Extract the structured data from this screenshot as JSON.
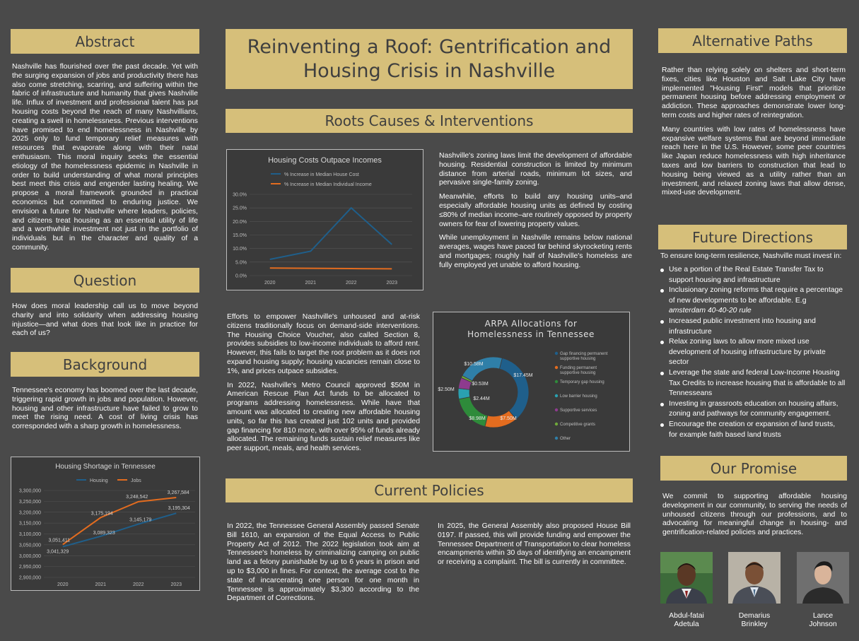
{
  "title": "Reinventing a Roof: Gentrification and Housing Crisis in Nashville",
  "sections": {
    "abstract": {
      "heading": "Abstract",
      "text": "Nashville has flourished over the past decade. Yet with the surging expansion of jobs and productivity there has also come stretching, scarring, and suffering within the fabric of infrastructure and humanity that gives Nashville life. Influx of investment and professional talent has put housing costs beyond the reach of many Nashvillians, creating a swell in homelessness. Previous interventions have promised to end homelessness in Nashville by 2025 only to fund temporary relief measures with resources that evaporate along with their natal enthusiasm. This moral inquiry seeks the essential etiology of the homelessness epidemic in Nashville in order to build understanding of what moral principles best meet this crisis and engender lasting healing. We propose a moral framework grounded in practical economics but committed to enduring justice. We envision a future for Nashville where leaders, policies, and citizens treat housing as an essential utility of life and a worthwhile investment not just in the portfolio of individuals but in the character and quality of a community."
    },
    "question": {
      "heading": "Question",
      "text": "How does moral leadership call us to move beyond charity and into solidarity when addressing housing injustice—and what does that look like in practice for each of us?"
    },
    "background": {
      "heading": "Background",
      "text": "Tennessee's economy has boomed over the last decade, triggering rapid growth in jobs and population. However, housing and other infrastructure have failed to grow to meet the rising need. A cost of living crisis has corresponded with  a sharp growth in homelessness."
    },
    "roots": {
      "heading": "Roots Causes & Interventions",
      "right_paragraphs": [
        "Nashville's zoning laws limit the development of affordable housing. Residential construction is limited by minimum distance from arterial roads, minimum lot sizes, and pervasive single-family zoning.",
        "Meanwhile, efforts to build any housing units–and especially affordable housing units as defined by costing ≤80% of median income–are routinely opposed by property owners for fear of lowering property values.",
        "While unemployment in Nashville remains below national averages, wages have paced far behind skyrocketing rents and mortgages; roughly half of Nashville's homeless are fully employed yet unable to afford housing."
      ],
      "left_paragraphs": [
        "Efforts to empower Nashville's unhoused and at-risk citizens traditionally focus on demand-side interventions. The Housing Choice Voucher, also called Section 8, provides subsidies to low-income individuals to afford rent. However, this fails to target the root problem as it does not expand housing supply; housing vacancies remain close to 1%, and prices outpace subsidies.",
        "In 2022, Nashville's Metro Council approved $50M in American Rescue Plan Act funds to be allocated to programs addressing homelessness. While have that amount was allocated to creating new affordable housing units, so far this has created just 102 units and provided gap financing for 810 more, with over 95% of funds already allocated. The remaining funds sustain relief measures like peer support, meals, and  health services."
      ]
    },
    "current": {
      "heading": "Current Policies",
      "left": "In 2022, the Tennessee General Assembly passed Senate Bill 1610, an expansion of the Equal Access to Public Property Act of 2012. The 2022 legislation took aim at Tennessee's homeless by criminalizing camping on public land as a felony punishable by up to 6 years in prison and up to $3,000 in fines. For context, the average  cost to the state of incarcerating one person for one month in Tennessee is approximately $3,300 according to the Department of Corrections.",
      "right": "In 2025, the General Assembly also proposed House Bill 0197. If passed, this will provide funding and empower the Tennessee Department of Transportation to clear homeless encampments within 30 days of identifying an encampment or receiving a complaint. The bill is currently in committee."
    },
    "alternative": {
      "heading": "Alternative Paths",
      "paragraphs": [
        "Rather than relying solely on shelters and short-term fixes, cities like Houston and Salt Lake City have implemented \"Housing First\" models that prioritize permanent housing before addressing employment or addiction. These approaches demonstrate lower long-term costs and higher rates of reintegration.",
        "Many countries with low rates of homelessness have expansive welfare systems that are beyond immediate reach here in the U.S. However, some peer countries like Japan reduce homelessness with high inheritance taxes and low barriers to construction that lead to housing being viewed as a utility rather than an investment, and relaxed zoning laws that allow dense, mixed-use development."
      ]
    },
    "future": {
      "heading": "Future Directions",
      "intro": "To ensure long-term resilience, Nashville must invest in:",
      "items": [
        "Use a portion of the Real Estate Transfer Tax to support housing and infrastructure",
        "Inclusionary zoning reforms that require a percentage of new developments to be affordable. E.g",
        "Increased public investment into housing and infrastructure",
        "Relax zoning laws to allow more mixed use development of housing infrastructure by private sector",
        "Leverage the state and federal Low-Income Housing Tax Credits to increase housing that is affordable to all Tennesseans",
        "Investing in grassroots education on housing affairs, zoning and pathways for community engagement.",
        "Encourage the creation or expansion of land trusts, for example faith based land trusts"
      ],
      "example_italic": "amsterdam 40-40-20 rule"
    },
    "promise": {
      "heading": "Our Promise",
      "text": "We commit to supporting affordable housing development in our community, to serving the needs of unhoused citizens through our professions, and to advocating for meaningful change in housing- and gentrification-related policies and practices."
    }
  },
  "people": [
    {
      "first": "Abdul-fatai",
      "last": "Adetula"
    },
    {
      "first": "Demarius",
      "last": "Brinkley"
    },
    {
      "first": "Lance",
      "last": "Johnson"
    }
  ],
  "colors": {
    "background": "#4a4a4a",
    "banner": "#d6bf7a",
    "banner_text": "#3f3f3f",
    "chart_bg": "#3a3a3a",
    "blue": "#1f5f8b",
    "orange": "#e36c1f",
    "green": "#2e8b3a",
    "purple": "#8e3b8e",
    "teal": "#2aa1b0"
  },
  "chart_data": [
    {
      "type": "line",
      "title": "Housing Costs Outpace Incomes",
      "categories": [
        "2020",
        "2021",
        "2022",
        "2023"
      ],
      "series": [
        {
          "name": "% Increase in Median House Cost",
          "values": [
            6.0,
            9.0,
            25.0,
            11.5
          ],
          "color": "#1f5f8b"
        },
        {
          "name": "% Increase in Median Individual Income",
          "values": [
            2.8,
            2.7,
            2.6,
            2.5
          ],
          "color": "#e36c1f"
        }
      ],
      "ylim": [
        0,
        30
      ],
      "yticks": [
        "0.0%",
        "5.0%",
        "10.0%",
        "15.0%",
        "20.0%",
        "25.0%",
        "30.0%"
      ],
      "legend": "top",
      "grid": true
    },
    {
      "type": "line",
      "title": "Housing Shortage in Tennessee",
      "categories": [
        "2020",
        "2021",
        "2022",
        "2023"
      ],
      "series": [
        {
          "name": "Housing",
          "values": [
            3041329,
            3089323,
            3145179,
            3195304
          ],
          "labels": [
            "3,041,329",
            "3,089,323",
            "3,145,179",
            "3,195,304"
          ],
          "color": "#1f5f8b"
        },
        {
          "name": "Jobs",
          "values": [
            3051411,
            3175194,
            3248542,
            3267584
          ],
          "labels": [
            "3,051,411",
            "3,175,194",
            "3,248,542",
            "3,267,584"
          ],
          "color": "#e36c1f"
        }
      ],
      "ylim": [
        2900000,
        3300000
      ],
      "yticks": [
        "2,900,000",
        "2,950,000",
        "3,000,000",
        "3,050,000",
        "3,100,000",
        "3,150,000",
        "3,200,000",
        "3,250,000",
        "3,300,000"
      ],
      "legend": "top",
      "grid": true
    },
    {
      "type": "pie",
      "title": "ARPA Allocations for Homelessness in Tennessee",
      "slices": [
        {
          "name": "Gap financing permanent supportive housing",
          "value": 17.45,
          "label": "$17.45M",
          "color": "#1f5f8b"
        },
        {
          "name": "Funding permanent supportive housing",
          "value": 7.5,
          "label": "$7.50M",
          "color": "#e36c1f"
        },
        {
          "name": "Temporary gap housing",
          "value": 8.98,
          "label": "$8.98M",
          "color": "#2e8b3a"
        },
        {
          "name": "Low barrier housing",
          "value": 2.44,
          "label": "$2.44M",
          "color": "#2aa1b0"
        },
        {
          "name": "Supportive services",
          "value": 2.5,
          "label": "$2.50M",
          "color": "#8e3b8e"
        },
        {
          "name": "Competitive grants",
          "value": 0.53,
          "label": "$0.53M",
          "color": "#6fa83a"
        },
        {
          "name": "Other",
          "value": 10.58,
          "label": "$10.58M",
          "color": "#2f7fa8"
        }
      ],
      "legend": "right"
    }
  ]
}
